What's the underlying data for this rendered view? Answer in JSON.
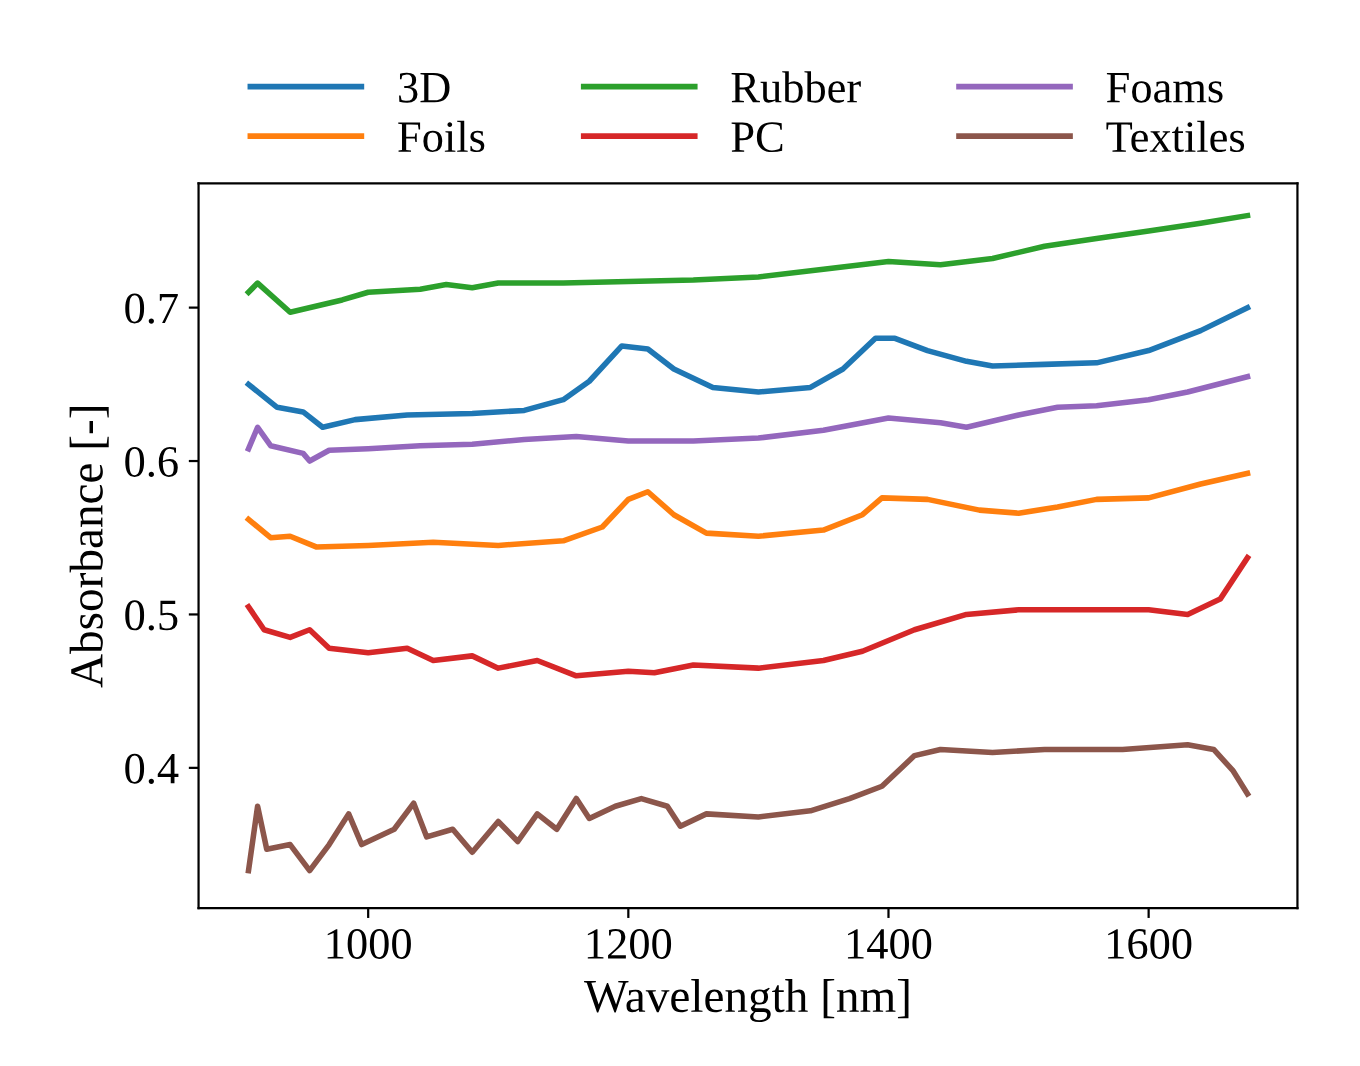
{
  "chart_data": {
    "type": "line",
    "xlabel": "Wavelength [nm]",
    "ylabel": "Absorbance [-]",
    "xlim": [
      869.6,
      1714.4
    ],
    "ylim": [
      0.3085,
      0.781
    ],
    "xticks": [
      1000,
      1200,
      1400,
      1600
    ],
    "yticks": [
      0.4,
      0.5,
      0.6,
      0.7
    ],
    "grid": false,
    "legend": "top",
    "marker": "none",
    "line_style": "solid",
    "series": [
      {
        "name": "3D",
        "color": "#1f77b4",
        "x": [
          908,
          930,
          950,
          965,
          990,
          1030,
          1080,
          1120,
          1150,
          1170,
          1195,
          1215,
          1235,
          1265,
          1300,
          1340,
          1365,
          1390,
          1405,
          1430,
          1460,
          1480,
          1520,
          1560,
          1600,
          1640,
          1676
        ],
        "values": [
          0.65,
          0.635,
          0.632,
          0.622,
          0.627,
          0.63,
          0.631,
          0.633,
          0.64,
          0.652,
          0.675,
          0.673,
          0.66,
          0.648,
          0.645,
          0.648,
          0.66,
          0.68,
          0.68,
          0.672,
          0.665,
          0.662,
          0.663,
          0.664,
          0.672,
          0.685,
          0.7
        ]
      },
      {
        "name": "Foils",
        "color": "#ff7f0e",
        "x": [
          908,
          925,
          940,
          960,
          1000,
          1050,
          1100,
          1150,
          1180,
          1200,
          1215,
          1235,
          1260,
          1300,
          1350,
          1380,
          1395,
          1430,
          1470,
          1500,
          1530,
          1560,
          1600,
          1640,
          1676
        ],
        "values": [
          0.562,
          0.55,
          0.551,
          0.544,
          0.545,
          0.547,
          0.545,
          0.548,
          0.557,
          0.575,
          0.58,
          0.565,
          0.553,
          0.551,
          0.555,
          0.565,
          0.576,
          0.575,
          0.568,
          0.566,
          0.57,
          0.575,
          0.576,
          0.585,
          0.592
        ]
      },
      {
        "name": "Rubber",
        "color": "#2ca02c",
        "x": [
          908,
          915,
          940,
          980,
          1000,
          1040,
          1060,
          1080,
          1100,
          1150,
          1200,
          1250,
          1300,
          1350,
          1400,
          1440,
          1480,
          1520,
          1560,
          1600,
          1640,
          1676
        ],
        "values": [
          0.71,
          0.716,
          0.697,
          0.705,
          0.71,
          0.712,
          0.715,
          0.713,
          0.716,
          0.716,
          0.717,
          0.718,
          0.72,
          0.725,
          0.73,
          0.728,
          0.732,
          0.74,
          0.745,
          0.75,
          0.755,
          0.76
        ]
      },
      {
        "name": "PC",
        "color": "#d62728",
        "x": [
          908,
          920,
          940,
          955,
          970,
          1000,
          1030,
          1050,
          1080,
          1100,
          1130,
          1160,
          1200,
          1220,
          1250,
          1300,
          1350,
          1380,
          1420,
          1460,
          1500,
          1550,
          1600,
          1630,
          1655,
          1676
        ],
        "values": [
          0.505,
          0.49,
          0.485,
          0.49,
          0.478,
          0.475,
          0.478,
          0.47,
          0.473,
          0.465,
          0.47,
          0.46,
          0.463,
          0.462,
          0.467,
          0.465,
          0.47,
          0.476,
          0.49,
          0.5,
          0.503,
          0.503,
          0.503,
          0.5,
          0.51,
          0.537
        ]
      },
      {
        "name": "Foams",
        "color": "#9467bd",
        "x": [
          908,
          915,
          925,
          950,
          955,
          970,
          1000,
          1040,
          1080,
          1120,
          1160,
          1200,
          1250,
          1300,
          1350,
          1400,
          1440,
          1460,
          1500,
          1530,
          1560,
          1600,
          1630,
          1676
        ],
        "values": [
          0.608,
          0.622,
          0.61,
          0.605,
          0.6,
          0.607,
          0.608,
          0.61,
          0.611,
          0.614,
          0.616,
          0.613,
          0.613,
          0.615,
          0.62,
          0.628,
          0.625,
          0.622,
          0.63,
          0.635,
          0.636,
          0.64,
          0.645,
          0.655
        ]
      },
      {
        "name": "Textiles",
        "color": "#8c564b",
        "x": [
          908,
          915,
          922,
          940,
          955,
          970,
          985,
          995,
          1020,
          1035,
          1045,
          1065,
          1080,
          1100,
          1115,
          1130,
          1145,
          1160,
          1170,
          1190,
          1210,
          1230,
          1240,
          1260,
          1300,
          1340,
          1370,
          1395,
          1420,
          1440,
          1480,
          1520,
          1580,
          1630,
          1650,
          1665,
          1676
        ],
        "values": [
          0.333,
          0.375,
          0.347,
          0.35,
          0.333,
          0.35,
          0.37,
          0.35,
          0.36,
          0.377,
          0.355,
          0.36,
          0.345,
          0.365,
          0.352,
          0.37,
          0.36,
          0.38,
          0.367,
          0.375,
          0.38,
          0.375,
          0.362,
          0.37,
          0.368,
          0.372,
          0.38,
          0.388,
          0.408,
          0.412,
          0.41,
          0.412,
          0.412,
          0.415,
          0.412,
          0.398,
          0.383
        ]
      }
    ]
  }
}
